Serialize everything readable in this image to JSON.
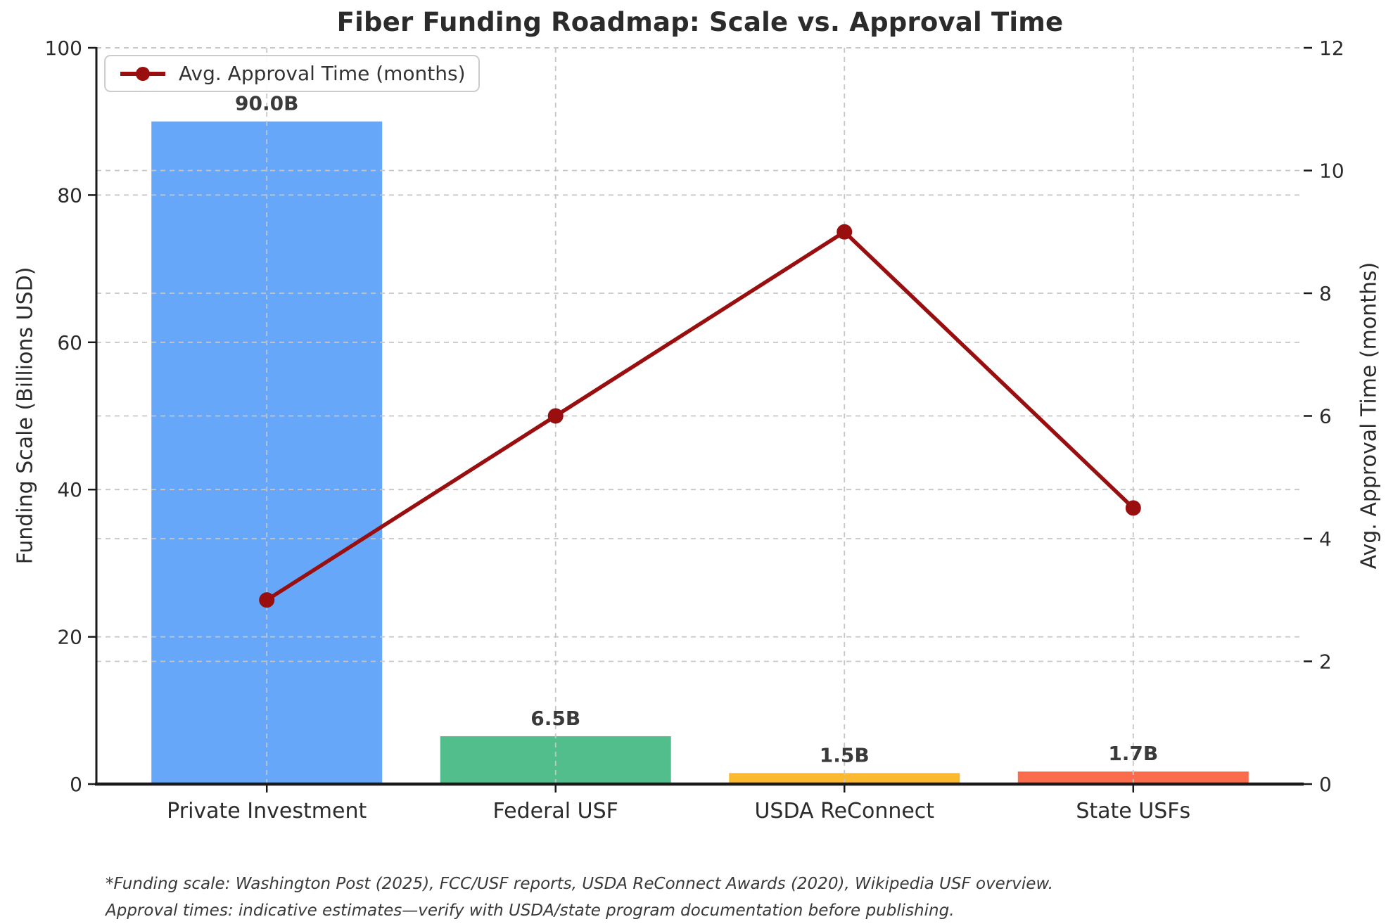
{
  "chart_data": {
    "type": "bar",
    "title": "Fiber Funding Roadmap: Scale vs. Approval Time",
    "categories": [
      "Private Investment",
      "Federal USF",
      "USDA ReConnect",
      "State USFs"
    ],
    "bars": {
      "values": [
        90.0,
        6.5,
        1.5,
        1.7
      ],
      "labels": [
        "90.0B",
        "6.5B",
        "1.5B",
        "1.7B"
      ],
      "colors": [
        "#66A7F9",
        "#52BE8C",
        "#FBB931",
        "#FB6C4D"
      ]
    },
    "line": {
      "values": [
        3,
        6,
        9,
        4.5
      ],
      "color": "#990F0F",
      "axis": "right",
      "marker": "circle"
    },
    "ylabel_left": "Funding Scale (Billions USD)",
    "ylim_left": [
      0,
      100
    ],
    "yticks_left": [
      0,
      20,
      40,
      60,
      80,
      100
    ],
    "ylabel_right": "Avg. Approval Time (months)",
    "ylim_right": [
      0,
      12
    ],
    "yticks_right": [
      0,
      2,
      4,
      6,
      8,
      10,
      12
    ],
    "grid": "dashed horizontal gridlines for both axes plus vertical gridlines at each category",
    "legend": {
      "label": "Avg. Approval Time (months)",
      "position": "upper left"
    },
    "footnote": [
      "*Funding scale: Washington Post (2025), FCC/USF reports, USDA ReConnect Awards (2020), Wikipedia USF overview.",
      "Approval times: indicative estimates—verify with USDA/state program documentation before publishing."
    ],
    "colors": {
      "grid": "#c6c6c6",
      "axis": "#1a1a1a",
      "background": "#ffffff"
    }
  }
}
